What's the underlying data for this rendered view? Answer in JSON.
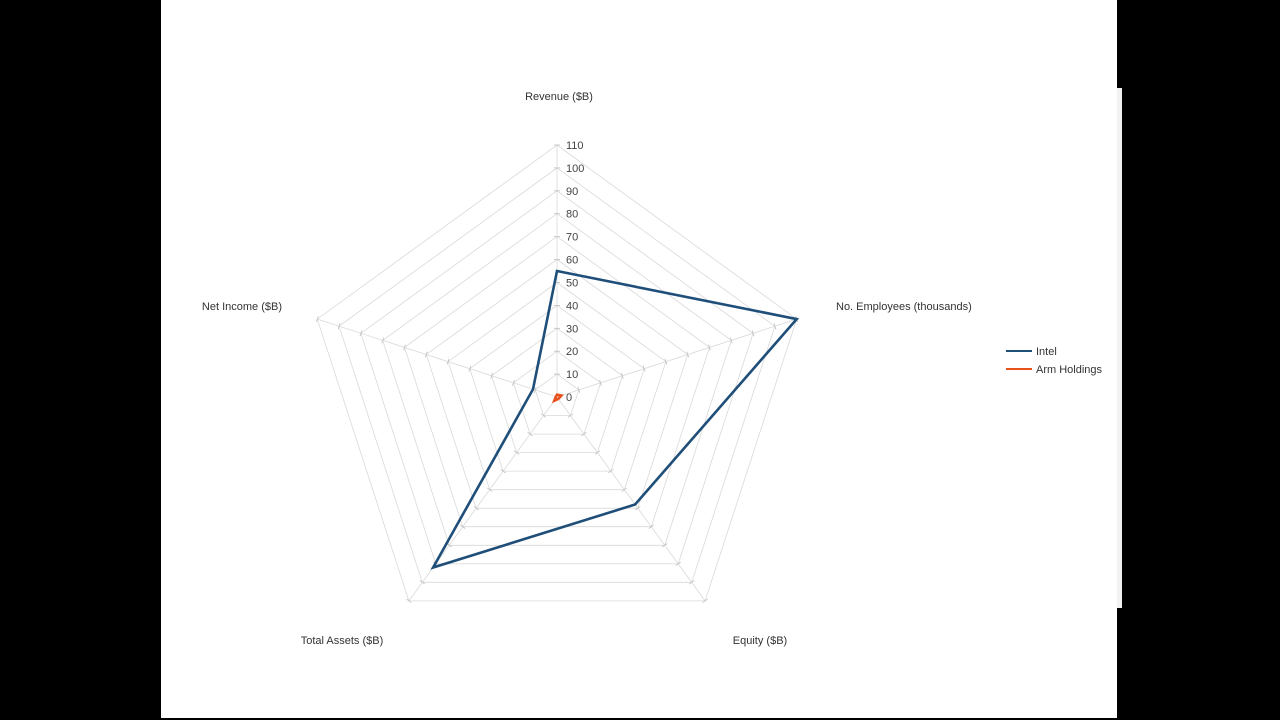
{
  "colors": {
    "background": "#000000",
    "slide": "#ffffff",
    "grid": "#d9d9d9"
  },
  "chart_data": {
    "type": "radar",
    "axes": [
      "Revenue ($B)",
      "No. Employees (thousands)",
      "Equity ($B)",
      "Total Assets ($B)",
      "Net Income ($B)"
    ],
    "r_ticks": [
      0,
      10,
      20,
      30,
      40,
      50,
      60,
      70,
      80,
      90,
      100,
      110
    ],
    "rlim": [
      0,
      110
    ],
    "grid": true,
    "legend_position": "right",
    "series": [
      {
        "name": "Intel",
        "color": "#1f4e79",
        "values": [
          55,
          110,
          58,
          92,
          11
        ]
      },
      {
        "name": "Arm Holdings",
        "color": "#e8501c",
        "values": [
          1,
          2,
          1,
          2,
          0.5
        ]
      }
    ]
  }
}
